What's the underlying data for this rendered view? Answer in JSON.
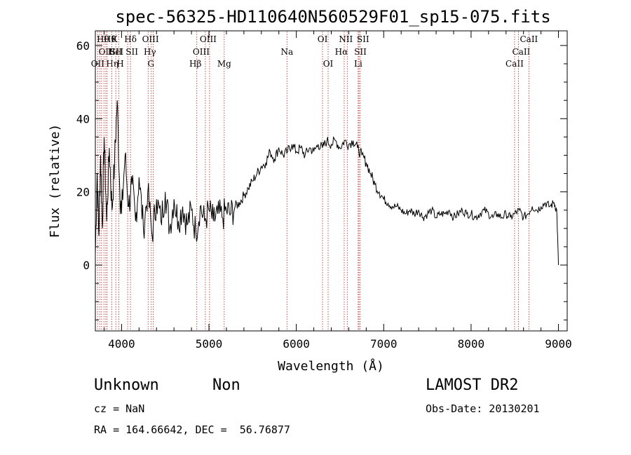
{
  "chart_data": {
    "type": "line",
    "title": "spec-56325-HD110640N560529F01_sp15-075.fits",
    "xlabel": "Wavelength (Å)",
    "ylabel": "Flux (relative)",
    "xlim": [
      3700,
      9100
    ],
    "ylim": [
      -18,
      64
    ],
    "xticks": [
      4000,
      5000,
      6000,
      7000,
      8000,
      9000
    ],
    "yticks": [
      0,
      20,
      40,
      60
    ],
    "line_color": "#000000",
    "marker_color": "#b22222",
    "series": [
      {
        "x": [
          3700,
          3720,
          3740,
          3760,
          3780,
          3800,
          3830,
          3860,
          3890,
          3920,
          3950,
          3980,
          4000,
          4040,
          4080,
          4120,
          4160,
          4200,
          4250,
          4300,
          4350,
          4400,
          4450,
          4500,
          4550,
          4600,
          4650,
          4700,
          4750,
          4800,
          4850,
          4900,
          4950,
          5000,
          5050,
          5100,
          5150,
          5200,
          5250,
          5300,
          5350,
          5400,
          5450,
          5500,
          5550,
          5600,
          5650,
          5700,
          5750,
          5800,
          5850,
          5900,
          5950,
          6000,
          6050,
          6100,
          6150,
          6200,
          6250,
          6300,
          6350,
          6400,
          6450,
          6500,
          6550,
          6600,
          6650,
          6700,
          6750,
          6800,
          6850,
          6900,
          6950,
          7000,
          7050,
          7100,
          7150,
          7200,
          7250,
          7300,
          7350,
          7400,
          7450,
          7500,
          7550,
          7600,
          7650,
          7700,
          7750,
          7800,
          7850,
          7900,
          7950,
          8000,
          8050,
          8100,
          8150,
          8200,
          8250,
          8300,
          8350,
          8400,
          8450,
          8500,
          8550,
          8600,
          8650,
          8700,
          8750,
          8800,
          8850,
          8900,
          8950,
          8980,
          9000
        ],
        "y": [
          3,
          25,
          8,
          30,
          10,
          35,
          12,
          32,
          15,
          28,
          45,
          20,
          14,
          30,
          16,
          22,
          12,
          24,
          10,
          20,
          8,
          18,
          12,
          20,
          10,
          18,
          12,
          16,
          11,
          15,
          9,
          16,
          12,
          15,
          12,
          14,
          13,
          15,
          14,
          16,
          17,
          19,
          21,
          23,
          25,
          27,
          28,
          31,
          29,
          32,
          30,
          31,
          33,
          31,
          32,
          30,
          32,
          31,
          33,
          32,
          34,
          33,
          34,
          32,
          34,
          33,
          34,
          32,
          30,
          28,
          25,
          22,
          20,
          18,
          17,
          16,
          16,
          15,
          14,
          15,
          14,
          15,
          13,
          14,
          15,
          13,
          14,
          14,
          15,
          13,
          14,
          15,
          14,
          14,
          13,
          14,
          15,
          14,
          13,
          14,
          13,
          14,
          13,
          14,
          15,
          13,
          14,
          16,
          15,
          16,
          17,
          16,
          17,
          15,
          0
        ]
      }
    ],
    "lines": [
      {
        "wl": 3727,
        "row": 2,
        "label": "OII",
        "dx": 0
      },
      {
        "wl": 3750,
        "row": 1,
        "label": "OII",
        "dx": 8
      },
      {
        "wl": 3771,
        "row": 0,
        "label": "Hθ",
        "dx": 2
      },
      {
        "wl": 3798,
        "row": 2,
        "label": "Hη",
        "dx": 12
      },
      {
        "wl": 3820,
        "row": 1,
        "label": "HeI",
        "dx": 14
      },
      {
        "wl": 3835,
        "row": 0,
        "label": "Hθ",
        "dx": 4
      },
      {
        "wl": 3889,
        "row": 1,
        "label": "SII",
        "dx": 6
      },
      {
        "wl": 3934,
        "row": 0,
        "label": "K",
        "dx": -2
      },
      {
        "wl": 3969,
        "row": 2,
        "label": "H",
        "dx": 2
      },
      {
        "wl": 4102,
        "row": 0,
        "label": "Hδ",
        "dx": 0
      },
      {
        "wl": 4070,
        "row": 1,
        "label": "SII",
        "dx": 6
      },
      {
        "wl": 4304,
        "row": 2,
        "label": "G",
        "dx": 4
      },
      {
        "wl": 4340,
        "row": 1,
        "label": "Hγ",
        "dx": -2
      },
      {
        "wl": 4363,
        "row": 0,
        "label": "OIII",
        "dx": -4
      },
      {
        "wl": 4861,
        "row": 2,
        "label": "Hβ",
        "dx": -2
      },
      {
        "wl": 4959,
        "row": 1,
        "label": "OIII",
        "dx": -6
      },
      {
        "wl": 5007,
        "row": 0,
        "label": "OIII",
        "dx": -2
      },
      {
        "wl": 5175,
        "row": 2,
        "label": "Mg",
        "dx": 0
      },
      {
        "wl": 5893,
        "row": 1,
        "label": "Na",
        "dx": 0
      },
      {
        "wl": 6300,
        "row": 0,
        "label": "OI",
        "dx": 0
      },
      {
        "wl": 6364,
        "row": 2,
        "label": "OI",
        "dx": 0
      },
      {
        "wl": 6548,
        "row": 1,
        "label": "Hα",
        "dx": -4
      },
      {
        "wl": 6583,
        "row": 0,
        "label": "NII",
        "dx": -2
      },
      {
        "wl": 6717,
        "row": 1,
        "label": "SII",
        "dx": 2
      },
      {
        "wl": 6708,
        "row": 2,
        "label": "Li",
        "dx": 0
      },
      {
        "wl": 6731,
        "row": 0,
        "label": "SII",
        "dx": 4
      },
      {
        "wl": 8498,
        "row": 2,
        "label": "CaII",
        "dx": 0
      },
      {
        "wl": 8542,
        "row": 1,
        "label": "CaII",
        "dx": 4
      },
      {
        "wl": 8662,
        "row": 0,
        "label": "CaII",
        "dx": 0
      }
    ]
  },
  "info": {
    "object_class": "Unknown",
    "subclass": "Non",
    "survey": "LAMOST DR2",
    "redshift": "cz = NaN",
    "obs_date": "Obs-Date: 20130201",
    "coords": "RA = 164.66642, DEC =  56.76877"
  }
}
